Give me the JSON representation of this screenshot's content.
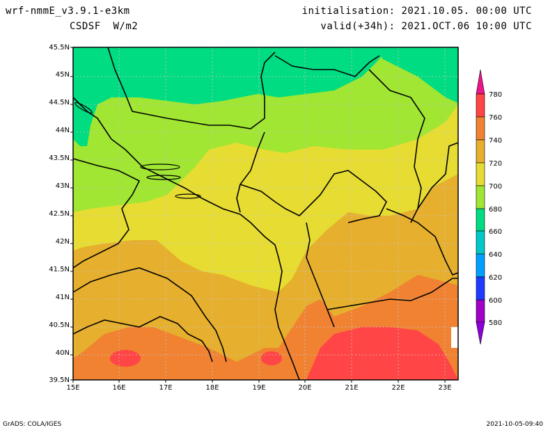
{
  "header": {
    "model": "wrf-nmmE_v3.9.1-e3km",
    "field": "CSDSF  W/m2",
    "init": "initialisation: 2021.10.05. 00:00 UTC",
    "valid": "valid(+34h): 2021.OCT.06 10:00 UTC"
  },
  "footer": {
    "credit": "GrADS: COLA/IGES",
    "timestamp": "2021-10-05-09:40"
  },
  "map": {
    "lat_labels": [
      "45.5N",
      "45N",
      "44.5N",
      "44N",
      "43.5N",
      "43N",
      "42.5N",
      "42N",
      "41.5N",
      "41N",
      "40.5N",
      "40N",
      "39.5N"
    ],
    "lon_labels": [
      "15E",
      "16E",
      "17E",
      "18E",
      "19E",
      "20E",
      "21E",
      "22E",
      "23E"
    ]
  },
  "colorbar": {
    "labels": [
      "780",
      "760",
      "740",
      "720",
      "700",
      "680",
      "660",
      "640",
      "620",
      "600",
      "580"
    ],
    "colors": {
      "above_780": "#f0148c",
      "760_780": "#ff4545",
      "740_760": "#f08232",
      "720_740": "#e6af2d",
      "700_720": "#e6dc32",
      "680_700": "#a0e632",
      "660_680": "#00dc82",
      "640_660": "#00c8c8",
      "620_640": "#00a0ff",
      "600_620": "#1e3cff",
      "580_600": "#a000c8",
      "below_580": "#8c00dc"
    }
  }
}
